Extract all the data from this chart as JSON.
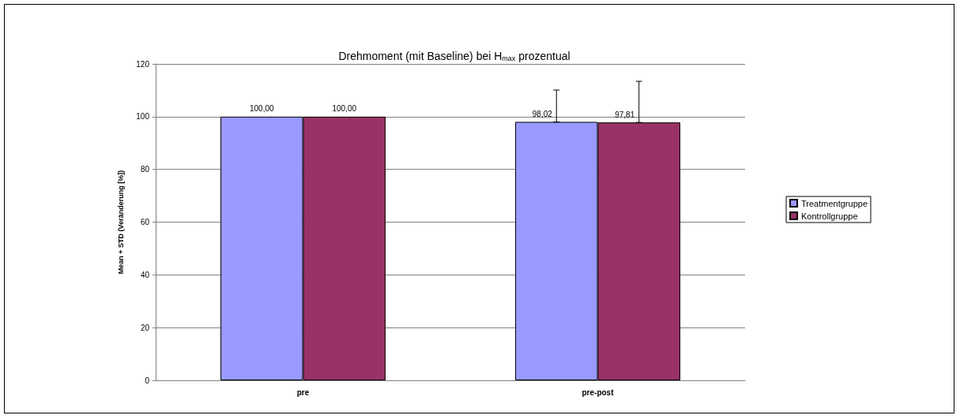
{
  "chart_data": {
    "type": "bar",
    "title": "Drehmoment (mit Baseline) bei H$_{max}$ prozentual",
    "ylabel": "Mean + STD (Veränderung [%])",
    "categories": [
      "pre",
      "pre-post"
    ],
    "series": [
      {
        "name": "Treatmentgruppe",
        "color": "#9999ff",
        "values": [
          100.0,
          98.02
        ],
        "value_labels": [
          "100,00",
          "98,02"
        ],
        "errors": [
          null,
          [
            98.02,
            110.1
          ]
        ]
      },
      {
        "name": "Kontrollgruppe",
        "color": "#993366",
        "values": [
          100.0,
          97.81
        ],
        "value_labels": [
          "100,00",
          "97,81"
        ],
        "errors": [
          null,
          [
            97.81,
            113.4
          ]
        ]
      }
    ],
    "ylim": [
      0,
      120
    ],
    "yticks": [
      0,
      20,
      40,
      60,
      80,
      100,
      120
    ],
    "grid": "y",
    "legend": "right"
  }
}
